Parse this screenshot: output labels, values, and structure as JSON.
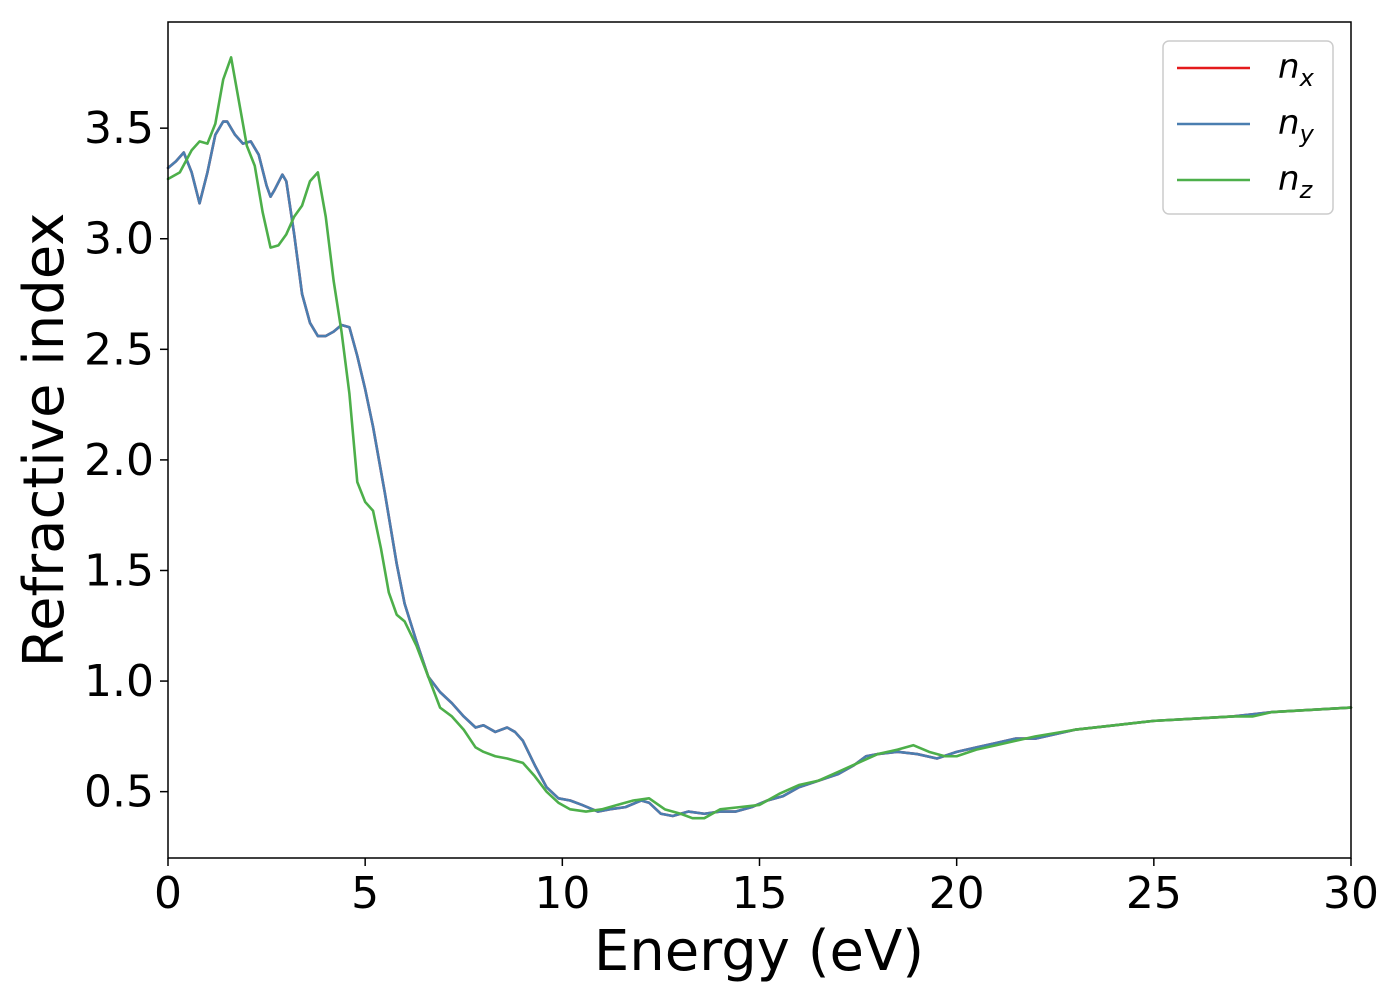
{
  "chart_data": {
    "type": "line",
    "title": "",
    "xlabel": "Energy (eV)",
    "ylabel": "Refractive index",
    "xlim": [
      0,
      30
    ],
    "ylim": [
      0.2,
      3.98
    ],
    "xticks": [
      0,
      5,
      10,
      15,
      20,
      25,
      30
    ],
    "xtick_labels": [
      "0",
      "5",
      "10",
      "15",
      "20",
      "25",
      "30"
    ],
    "yticks": [
      0.5,
      1.0,
      1.5,
      2.0,
      2.5,
      3.0,
      3.5
    ],
    "ytick_labels": [
      "0.5",
      "1.0",
      "1.5",
      "2.0",
      "2.5",
      "3.0",
      "3.5"
    ],
    "grid": false,
    "legend_position": "top-right",
    "series": [
      {
        "name": "n_x",
        "legend_main": "n",
        "legend_sub": "x",
        "color": "#e41a1c",
        "x": [
          0,
          0.2,
          0.4,
          0.6,
          0.8,
          1.0,
          1.2,
          1.4,
          1.5,
          1.7,
          1.9,
          2.1,
          2.3,
          2.5,
          2.6,
          2.7,
          2.9,
          3.0,
          3.2,
          3.4,
          3.6,
          3.8,
          4.0,
          4.2,
          4.4,
          4.6,
          4.8,
          5.0,
          5.2,
          5.5,
          5.8,
          6.0,
          6.3,
          6.6,
          6.9,
          7.2,
          7.5,
          7.8,
          8.0,
          8.3,
          8.6,
          8.8,
          9.0,
          9.3,
          9.6,
          9.9,
          10.2,
          10.5,
          10.9,
          11.2,
          11.6,
          12.0,
          12.2,
          12.5,
          12.8,
          13.2,
          13.6,
          14.0,
          14.4,
          14.8,
          15.2,
          15.6,
          16.0,
          16.5,
          17.0,
          17.4,
          17.7,
          18.0,
          18.5,
          19.0,
          19.5,
          20.0,
          20.5,
          21.0,
          21.5,
          22.0,
          23.0,
          24.0,
          25.0,
          26.0,
          27.0,
          27.5,
          28.0,
          29.0,
          30.0
        ],
        "y": [
          3.32,
          3.35,
          3.39,
          3.3,
          3.16,
          3.3,
          3.47,
          3.53,
          3.53,
          3.47,
          3.43,
          3.44,
          3.38,
          3.24,
          3.19,
          3.22,
          3.29,
          3.26,
          3.02,
          2.75,
          2.62,
          2.56,
          2.56,
          2.58,
          2.61,
          2.6,
          2.47,
          2.32,
          2.15,
          1.85,
          1.53,
          1.35,
          1.18,
          1.02,
          0.95,
          0.9,
          0.84,
          0.79,
          0.8,
          0.77,
          0.79,
          0.77,
          0.73,
          0.62,
          0.52,
          0.47,
          0.46,
          0.44,
          0.41,
          0.42,
          0.43,
          0.46,
          0.45,
          0.4,
          0.39,
          0.41,
          0.4,
          0.41,
          0.41,
          0.43,
          0.46,
          0.48,
          0.52,
          0.55,
          0.58,
          0.62,
          0.66,
          0.67,
          0.68,
          0.67,
          0.65,
          0.68,
          0.7,
          0.72,
          0.74,
          0.74,
          0.78,
          0.8,
          0.82,
          0.83,
          0.84,
          0.85,
          0.86,
          0.87,
          0.88
        ]
      },
      {
        "name": "n_y",
        "legend_main": "n",
        "legend_sub": "y",
        "color": "#4a7eb0",
        "x": [
          0,
          0.2,
          0.4,
          0.6,
          0.8,
          1.0,
          1.2,
          1.4,
          1.5,
          1.7,
          1.9,
          2.1,
          2.3,
          2.5,
          2.6,
          2.7,
          2.9,
          3.0,
          3.2,
          3.4,
          3.6,
          3.8,
          4.0,
          4.2,
          4.4,
          4.6,
          4.8,
          5.0,
          5.2,
          5.5,
          5.8,
          6.0,
          6.3,
          6.6,
          6.9,
          7.2,
          7.5,
          7.8,
          8.0,
          8.3,
          8.6,
          8.8,
          9.0,
          9.3,
          9.6,
          9.9,
          10.2,
          10.5,
          10.9,
          11.2,
          11.6,
          12.0,
          12.2,
          12.5,
          12.8,
          13.2,
          13.6,
          14.0,
          14.4,
          14.8,
          15.2,
          15.6,
          16.0,
          16.5,
          17.0,
          17.4,
          17.7,
          18.0,
          18.5,
          19.0,
          19.5,
          20.0,
          20.5,
          21.0,
          21.5,
          22.0,
          23.0,
          24.0,
          25.0,
          26.0,
          27.0,
          27.5,
          28.0,
          29.0,
          30.0
        ],
        "y": [
          3.32,
          3.35,
          3.39,
          3.3,
          3.16,
          3.3,
          3.47,
          3.53,
          3.53,
          3.47,
          3.43,
          3.44,
          3.38,
          3.24,
          3.19,
          3.22,
          3.29,
          3.26,
          3.02,
          2.75,
          2.62,
          2.56,
          2.56,
          2.58,
          2.61,
          2.6,
          2.47,
          2.32,
          2.15,
          1.85,
          1.53,
          1.35,
          1.18,
          1.02,
          0.95,
          0.9,
          0.84,
          0.79,
          0.8,
          0.77,
          0.79,
          0.77,
          0.73,
          0.62,
          0.52,
          0.47,
          0.46,
          0.44,
          0.41,
          0.42,
          0.43,
          0.46,
          0.45,
          0.4,
          0.39,
          0.41,
          0.4,
          0.41,
          0.41,
          0.43,
          0.46,
          0.48,
          0.52,
          0.55,
          0.58,
          0.62,
          0.66,
          0.67,
          0.68,
          0.67,
          0.65,
          0.68,
          0.7,
          0.72,
          0.74,
          0.74,
          0.78,
          0.8,
          0.82,
          0.83,
          0.84,
          0.85,
          0.86,
          0.87,
          0.88
        ]
      },
      {
        "name": "n_z",
        "legend_main": "n",
        "legend_sub": "z",
        "color": "#4daf4a",
        "x": [
          0,
          0.3,
          0.6,
          0.8,
          1.0,
          1.2,
          1.4,
          1.6,
          1.8,
          2.0,
          2.2,
          2.4,
          2.6,
          2.8,
          3.0,
          3.2,
          3.4,
          3.6,
          3.8,
          4.0,
          4.2,
          4.4,
          4.6,
          4.8,
          5.0,
          5.2,
          5.4,
          5.6,
          5.8,
          6.0,
          6.3,
          6.6,
          6.9,
          7.2,
          7.5,
          7.8,
          8.0,
          8.3,
          8.6,
          9.0,
          9.3,
          9.6,
          9.9,
          10.2,
          10.6,
          11.0,
          11.4,
          11.8,
          12.2,
          12.6,
          13.0,
          13.3,
          13.6,
          14.0,
          14.5,
          15.0,
          15.5,
          16.0,
          16.5,
          17.0,
          17.5,
          18.0,
          18.5,
          18.9,
          19.3,
          19.7,
          20.0,
          20.5,
          21.0,
          21.5,
          22.0,
          23.0,
          24.0,
          25.0,
          26.0,
          27.0,
          27.5,
          28.0,
          29.0,
          30.0
        ],
        "y": [
          3.27,
          3.3,
          3.4,
          3.44,
          3.43,
          3.52,
          3.72,
          3.82,
          3.62,
          3.42,
          3.33,
          3.12,
          2.96,
          2.97,
          3.02,
          3.1,
          3.15,
          3.26,
          3.3,
          3.1,
          2.81,
          2.58,
          2.3,
          1.9,
          1.81,
          1.77,
          1.6,
          1.4,
          1.3,
          1.27,
          1.16,
          1.02,
          0.88,
          0.84,
          0.78,
          0.7,
          0.68,
          0.66,
          0.65,
          0.63,
          0.57,
          0.5,
          0.45,
          0.42,
          0.41,
          0.42,
          0.44,
          0.46,
          0.47,
          0.42,
          0.4,
          0.38,
          0.38,
          0.42,
          0.43,
          0.44,
          0.49,
          0.53,
          0.55,
          0.59,
          0.63,
          0.67,
          0.69,
          0.71,
          0.68,
          0.66,
          0.66,
          0.69,
          0.71,
          0.73,
          0.75,
          0.78,
          0.8,
          0.82,
          0.83,
          0.84,
          0.84,
          0.86,
          0.87,
          0.88
        ]
      }
    ]
  }
}
